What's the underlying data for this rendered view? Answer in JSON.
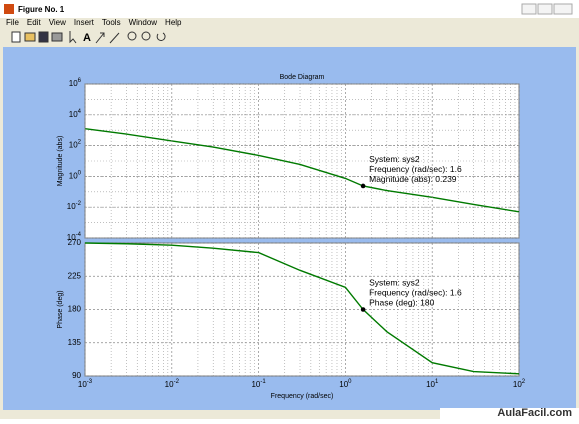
{
  "window": {
    "title": "Figure No. 1",
    "menu": [
      "File",
      "Edit",
      "View",
      "Insert",
      "Tools",
      "Window",
      "Help"
    ],
    "watermark": "AulaFacil.com"
  },
  "chart_data": [
    {
      "type": "line",
      "title": "Bode Diagram",
      "ylabel": "Magnitude (abs)",
      "xscale": "log",
      "yscale": "log",
      "grid": true,
      "xlim": [
        0.001,
        100
      ],
      "ylim": [
        0.0001,
        1000000
      ],
      "yticks": [
        {
          "value": 1000000,
          "label": "10",
          "exponent": "6"
        },
        {
          "value": 10000,
          "label": "10",
          "exponent": "4"
        },
        {
          "value": 100,
          "label": "10",
          "exponent": "2"
        },
        {
          "value": 1,
          "label": "10",
          "exponent": "0"
        },
        {
          "value": 0.01,
          "label": "10",
          "exponent": "-2"
        },
        {
          "value": 0.0001,
          "label": "10",
          "exponent": "-4"
        }
      ],
      "series": [
        {
          "name": "sys2",
          "color": "#007a00",
          "x": [
            0.001,
            0.003,
            0.01,
            0.03,
            0.1,
            0.3,
            1,
            1.6,
            3,
            10,
            30,
            100
          ],
          "values": [
            1260,
            560,
            200,
            80,
            23,
            6,
            0.74,
            0.239,
            0.12,
            0.044,
            0.015,
            0.005
          ]
        }
      ],
      "datatip": {
        "index": 7,
        "lines": [
          "System: sys2",
          "Frequency (rad/sec): 1.6",
          "Magnitude (abs): 0.239"
        ]
      }
    },
    {
      "type": "line",
      "ylabel": "Phase (deg)",
      "xlabel": "Frequency  (rad/sec)",
      "xscale": "log",
      "grid": true,
      "xlim": [
        0.001,
        100
      ],
      "ylim": [
        90,
        270
      ],
      "xticks": [
        {
          "value": 0.001,
          "label": "10",
          "exponent": "-3"
        },
        {
          "value": 0.01,
          "label": "10",
          "exponent": "-2"
        },
        {
          "value": 0.1,
          "label": "10",
          "exponent": "-1"
        },
        {
          "value": 1,
          "label": "10",
          "exponent": "0"
        },
        {
          "value": 10,
          "label": "10",
          "exponent": "1"
        },
        {
          "value": 100,
          "label": "10",
          "exponent": "2"
        }
      ],
      "yticks": [
        90,
        135,
        180,
        225,
        270
      ],
      "series": [
        {
          "name": "sys2",
          "color": "#007a00",
          "x": [
            0.001,
            0.003,
            0.01,
            0.03,
            0.1,
            0.3,
            1,
            1.6,
            3,
            10,
            30,
            100
          ],
          "values": [
            270,
            269,
            267,
            263,
            257,
            233,
            210,
            180,
            150,
            108,
            96,
            93
          ]
        }
      ],
      "datatip": {
        "index": 7,
        "lines": [
          "System: sys2",
          "Frequency (rad/sec): 1.6",
          "Phase (deg): 180"
        ]
      }
    }
  ]
}
